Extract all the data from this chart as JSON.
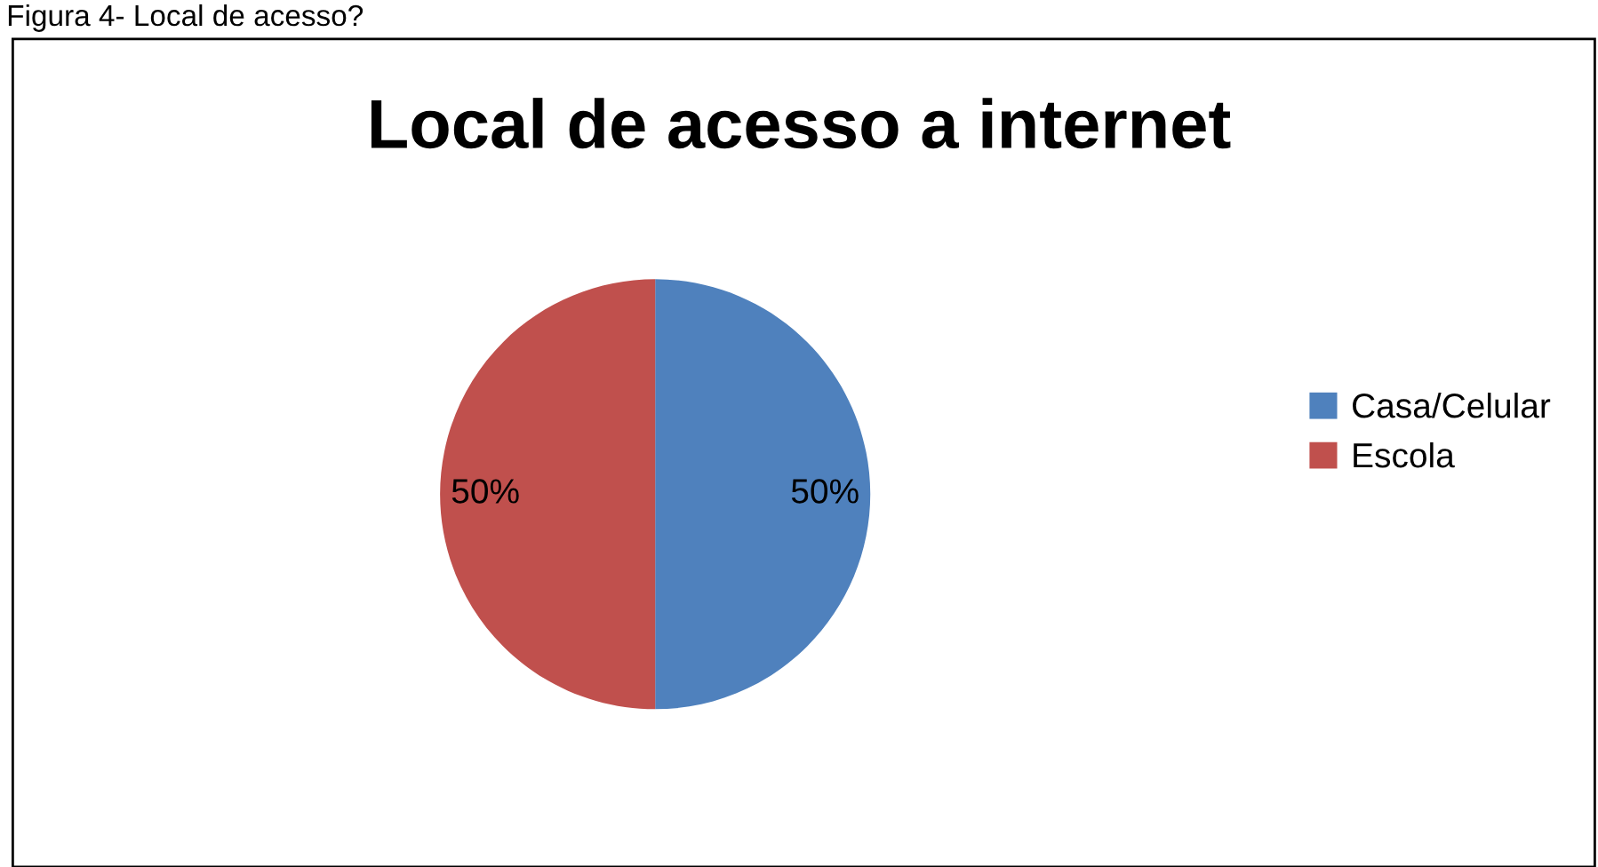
{
  "chart_data": {
    "type": "pie",
    "title": "Local de acesso a internet",
    "annotations": [
      "Figura 4- Local de acesso?"
    ],
    "categories": [
      "Casa/Celular",
      "Escola"
    ],
    "values": [
      50,
      50
    ],
    "value_labels": [
      "50%",
      "50%"
    ],
    "colors": [
      "#4f81bd",
      "#c0504d"
    ],
    "legend": "right"
  }
}
